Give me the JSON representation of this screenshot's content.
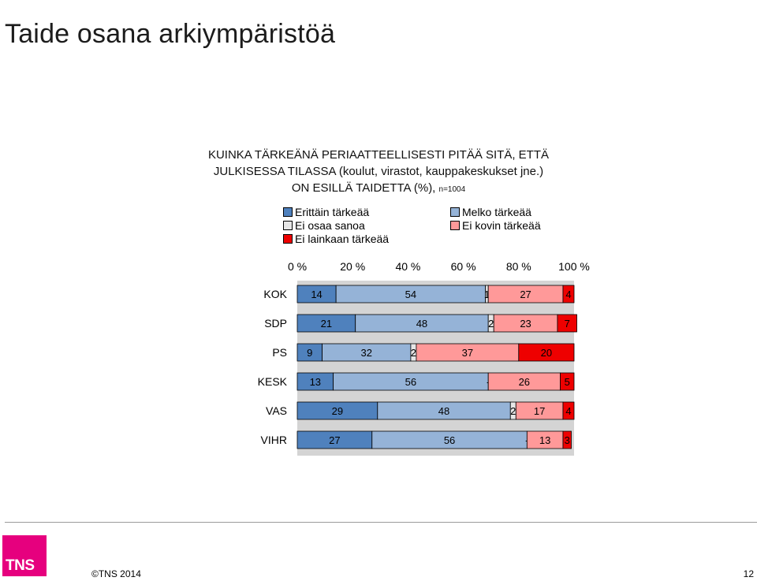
{
  "page": {
    "title": "Taide osana arkiympäristöä",
    "subtitle_line1": "KUINKA TÄRKEÄNÄ PERIAATTEELLISESTI PITÄÄ SITÄ, ETTÄ",
    "subtitle_line2": "JULKISESSA TILASSA  (koulut, virastot, kauppakeskukset jne.)",
    "subtitle_line3": "ON ESILLÄ TAIDETTA (%),",
    "sample_size": "n=1004",
    "copyright": "©TNS 2014",
    "page_number": "12",
    "logo_text": "TNS"
  },
  "chart_data": {
    "type": "bar",
    "orientation": "horizontal",
    "stacked": true,
    "percent_axis": true,
    "categories": [
      "KOK",
      "SDP",
      "PS",
      "KESK",
      "VAS",
      "VIHR"
    ],
    "x_ticks": [
      "0 %",
      "20 %",
      "40 %",
      "60 %",
      "80 %",
      "100 %"
    ],
    "xlim": [
      0,
      100
    ],
    "x_axis_position": "top",
    "legend_position": "top",
    "series": [
      {
        "name": "Erittäin tärkeää",
        "color": "#4f81bd",
        "values": [
          14,
          21,
          9,
          13,
          29,
          27
        ],
        "labels": [
          "14",
          "21",
          "9",
          "13",
          "29",
          "27"
        ]
      },
      {
        "name": "Melko tärkeää",
        "color": "#95b3d7",
        "values": [
          54,
          48,
          32,
          56,
          48,
          56
        ],
        "labels": [
          "54",
          "48",
          "32",
          "56",
          "48",
          "56"
        ]
      },
      {
        "name": "Ei osaa sanoa",
        "color": "#e6e6e6",
        "values": [
          1,
          2,
          2,
          0,
          2,
          0
        ],
        "labels": [
          "1",
          "2",
          "2",
          "-",
          "2",
          "-"
        ]
      },
      {
        "name": "Ei kovin tärkeää",
        "color": "#ff9999",
        "values": [
          27,
          23,
          37,
          26,
          17,
          13
        ],
        "labels": [
          "27",
          "23",
          "37",
          "26",
          "17",
          "13"
        ]
      },
      {
        "name": "Ei lainkaan tärkeää",
        "color": "#ee0000",
        "values": [
          4,
          7,
          20,
          5,
          4,
          3
        ],
        "labels": [
          "4",
          "7",
          "20",
          "5",
          "4",
          "3"
        ]
      }
    ]
  }
}
